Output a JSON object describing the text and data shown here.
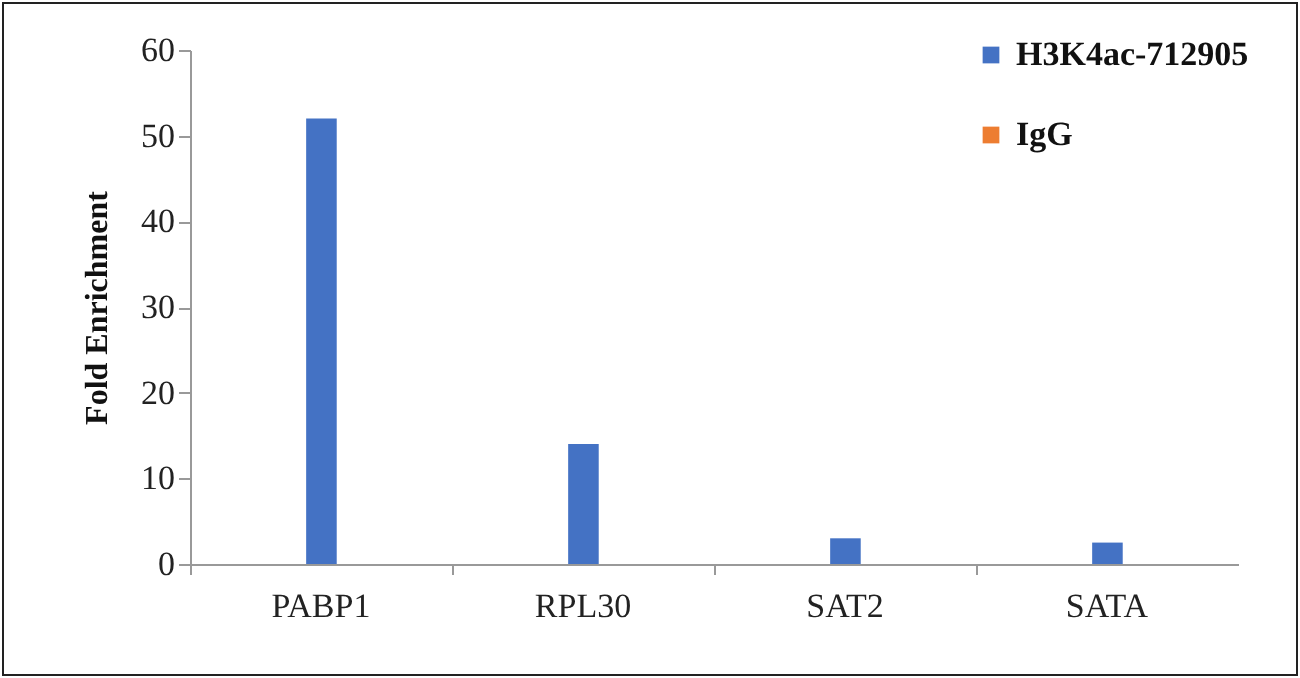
{
  "chart_data": {
    "type": "bar",
    "ylabel": "Fold Enrichment",
    "categories": [
      "PABP1",
      "RPL30",
      "SAT2",
      "SATA"
    ],
    "series": [
      {
        "name": "H3K4ac-712905",
        "color": "#4472c4",
        "values": [
          52,
          14,
          3,
          2.5
        ]
      },
      {
        "name": "IgG",
        "color": "#ed7d31",
        "values": [
          0,
          0,
          0,
          0
        ]
      }
    ],
    "ylim": [
      0,
      60
    ],
    "yticks": [
      0,
      10,
      20,
      30,
      40,
      50,
      60
    ],
    "grid": false,
    "legend": "top right"
  }
}
